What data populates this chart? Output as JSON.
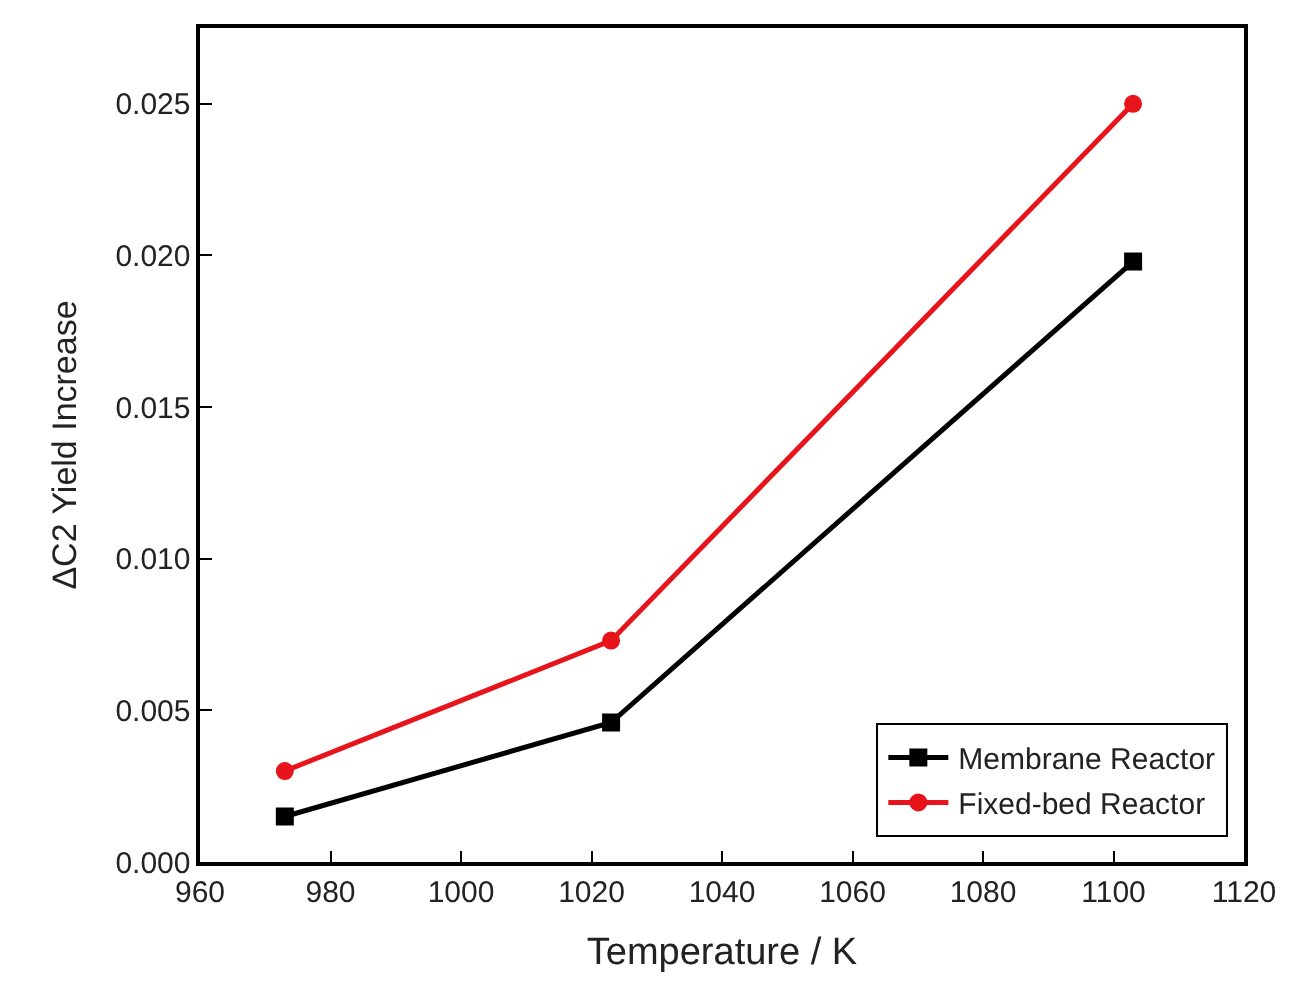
{
  "chart_data": {
    "type": "line",
    "xlabel": "Temperature / K",
    "ylabel": "ΔC2 Yield Increase",
    "x": [
      973,
      1023,
      1103
    ],
    "series": [
      {
        "name": "Membrane Reactor",
        "color": "#000000",
        "values": [
          0.0015,
          0.0046,
          0.0198
        ],
        "marker": "square"
      },
      {
        "name": "Fixed-bed Reactor",
        "color": "#e8141c",
        "values": [
          0.003,
          0.0073,
          0.025
        ],
        "marker": "circle"
      }
    ],
    "xlim": [
      960,
      1120
    ],
    "xticks": [
      960,
      980,
      1000,
      1020,
      1040,
      1060,
      1080,
      1100,
      1120
    ],
    "ylim": [
      0,
      0.0275
    ],
    "yticks": [
      {
        "value": 0,
        "label": "0.000"
      },
      {
        "value": 0.005,
        "label": "0.005"
      },
      {
        "value": 0.01,
        "label": "0.010"
      },
      {
        "value": 0.015,
        "label": "0.015"
      },
      {
        "value": 0.02,
        "label": "0.020"
      },
      {
        "value": 0.025,
        "label": "0.025"
      }
    ],
    "legend": "bottom right",
    "line_style": "solid"
  }
}
